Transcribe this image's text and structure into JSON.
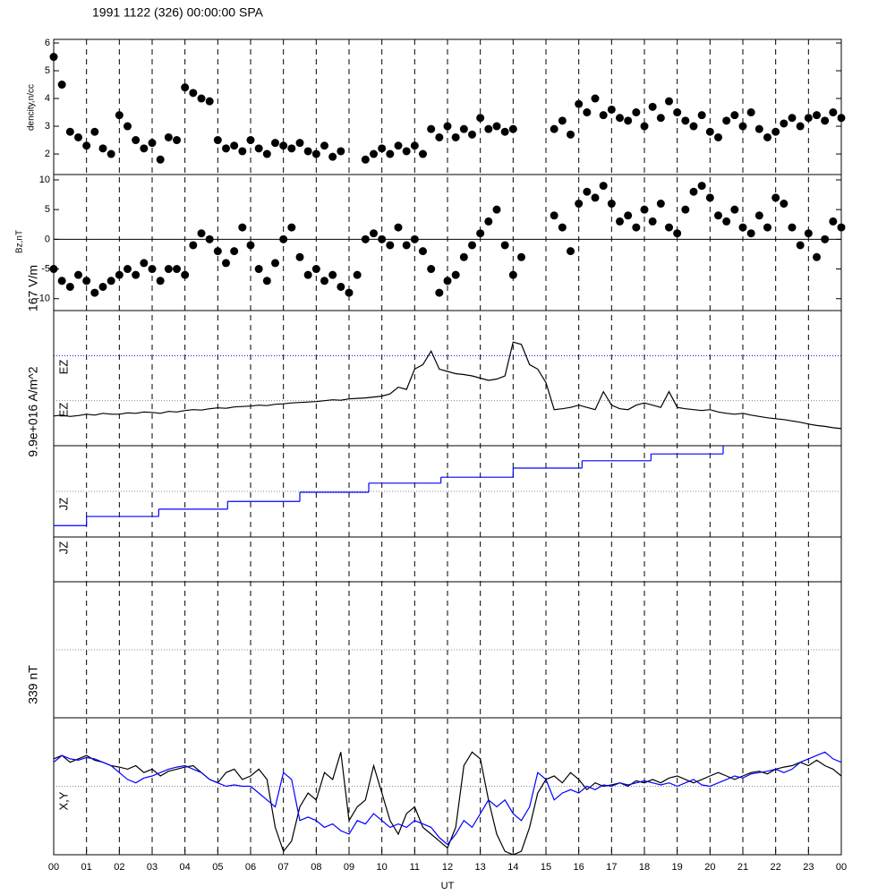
{
  "chart_data": [
    {
      "type": "scatter",
      "title": "1991 1122 (326) 00:00:00 SPA",
      "labels": [
        "dencity,n/cc"
      ],
      "color": "#000000",
      "xlim": [
        0,
        24
      ],
      "ylim": [
        1.26,
        6.13
      ],
      "yticks": [
        2,
        3,
        4,
        5,
        6
      ],
      "x": [
        0,
        0.25,
        0.5,
        0.75,
        1,
        1.25,
        1.5,
        1.75,
        2,
        2.25,
        2.5,
        2.75,
        3,
        3.25,
        3.5,
        3.75,
        4,
        4.25,
        4.5,
        4.75,
        5,
        5.25,
        5.5,
        5.75,
        6,
        6.25,
        6.5,
        6.75,
        7,
        7.25,
        7.5,
        7.75,
        8,
        8.25,
        8.5,
        8.75,
        9,
        9.25,
        9.5,
        9.75,
        10,
        10.25,
        10.5,
        10.75,
        11,
        11.25,
        11.5,
        11.75,
        12,
        12.25,
        12.5,
        12.75,
        13,
        13.25,
        13.5,
        13.75,
        14,
        14.25,
        14.5,
        14.75,
        15,
        15.25,
        15.5,
        15.75,
        16,
        16.25,
        16.5,
        16.75,
        17,
        17.25,
        17.5,
        17.75,
        18,
        18.25,
        18.5,
        18.75,
        19,
        19.25,
        19.5,
        19.75,
        20,
        20.25,
        20.5,
        20.75,
        21,
        21.25,
        21.5,
        21.75,
        22,
        22.25,
        22.5,
        22.75,
        23,
        23.25,
        23.5,
        23.75,
        24
      ],
      "values": [
        5.5,
        4.5,
        2.8,
        2.6,
        2.3,
        2.8,
        2.2,
        2.0,
        3.4,
        3.0,
        2.5,
        2.2,
        2.4,
        1.8,
        2.6,
        2.5,
        4.4,
        4.2,
        4.0,
        3.9,
        2.5,
        2.2,
        2.3,
        2.1,
        2.5,
        2.2,
        2.0,
        2.4,
        2.3,
        2.2,
        2.4,
        2.1,
        2.0,
        2.3,
        1.9,
        2.1,
        null,
        null,
        1.8,
        2.0,
        2.2,
        2.0,
        2.3,
        2.1,
        2.3,
        2.0,
        2.9,
        2.6,
        3.0,
        2.6,
        2.9,
        2.7,
        3.3,
        2.9,
        3.0,
        2.8,
        2.9,
        null,
        null,
        null,
        null,
        2.9,
        3.2,
        2.7,
        3.8,
        3.5,
        4.0,
        3.4,
        3.6,
        3.3,
        3.2,
        3.5,
        3.0,
        3.7,
        3.3,
        3.9,
        3.5,
        3.2,
        3.0,
        3.4,
        2.8,
        2.6,
        3.2,
        3.4,
        3.0,
        3.5,
        2.9,
        2.6,
        2.8,
        3.1,
        3.3,
        3.0,
        3.3,
        3.4,
        3.2,
        3.5,
        3.3
      ]
    },
    {
      "type": "scatter",
      "labels": [
        "Bz,nT"
      ],
      "color": "#000000",
      "xlim": [
        0,
        24
      ],
      "ylim": [
        -12.0,
        10.9
      ],
      "yticks": [
        -10,
        -5,
        0,
        5,
        10
      ],
      "hlines": [
        0
      ],
      "hline_colors": [
        "#000000"
      ],
      "x": [
        0,
        0.25,
        0.5,
        0.75,
        1,
        1.25,
        1.5,
        1.75,
        2,
        2.25,
        2.5,
        2.75,
        3,
        3.25,
        3.5,
        3.75,
        4,
        4.25,
        4.5,
        4.75,
        5,
        5.25,
        5.5,
        5.75,
        6,
        6.25,
        6.5,
        6.75,
        7,
        7.25,
        7.5,
        7.75,
        8,
        8.25,
        8.5,
        8.75,
        9,
        9.25,
        9.5,
        9.75,
        10,
        10.25,
        10.5,
        10.75,
        11,
        11.25,
        11.5,
        11.75,
        12,
        12.25,
        12.5,
        12.75,
        13,
        13.25,
        13.5,
        13.75,
        14,
        14.25,
        14.5,
        14.75,
        15,
        15.25,
        15.5,
        15.75,
        16,
        16.25,
        16.5,
        16.75,
        17,
        17.25,
        17.5,
        17.75,
        18,
        18.25,
        18.5,
        18.75,
        19,
        19.25,
        19.5,
        19.75,
        20,
        20.25,
        20.5,
        20.75,
        21,
        21.25,
        21.5,
        21.75,
        22,
        22.25,
        22.5,
        22.75,
        23,
        23.25,
        23.5,
        23.75,
        24
      ],
      "values": [
        -5,
        -7,
        -8,
        -6,
        -7,
        -9,
        -8,
        -7,
        -6,
        -5,
        -6,
        -4,
        -5,
        -7,
        -5,
        -5,
        -6,
        -1,
        1,
        0,
        -2,
        -4,
        -2,
        2,
        -1,
        -5,
        -7,
        -4,
        0,
        2,
        -3,
        -6,
        -5,
        -7,
        -6,
        -8,
        -9,
        -6,
        0,
        1,
        0,
        -1,
        2,
        -1,
        0,
        -2,
        -5,
        -9,
        -7,
        -6,
        -3,
        -1,
        1,
        3,
        5,
        -1,
        -6,
        -3,
        null,
        null,
        null,
        4,
        2,
        -2,
        6,
        8,
        7,
        9,
        6,
        3,
        4,
        2,
        5,
        3,
        6,
        2,
        1,
        5,
        8,
        9,
        7,
        4,
        3,
        5,
        2,
        1,
        4,
        2,
        7,
        6,
        2,
        -1,
        1,
        -3,
        0,
        3,
        2
      ]
    },
    {
      "type": "line",
      "labels": [
        "167 V/m",
        "EZ",
        "EZ"
      ],
      "color": "#000000",
      "xlim": [
        0,
        24
      ],
      "ylim": [
        0,
        3
      ],
      "hlines": [
        2,
        1
      ],
      "hline_colors": [
        "#0000ff",
        "#888888"
      ],
      "x": [
        0,
        0.25,
        0.5,
        0.75,
        1,
        1.25,
        1.5,
        1.75,
        2,
        2.25,
        2.5,
        2.75,
        3,
        3.25,
        3.5,
        3.75,
        4,
        4.25,
        4.5,
        4.75,
        5,
        5.25,
        5.5,
        5.75,
        6,
        6.25,
        6.5,
        6.75,
        7,
        7.25,
        7.5,
        7.75,
        8,
        8.25,
        8.5,
        8.75,
        9,
        9.25,
        9.5,
        9.75,
        10,
        10.25,
        10.5,
        10.75,
        11,
        11.25,
        11.5,
        11.75,
        12,
        12.25,
        12.5,
        12.75,
        13,
        13.25,
        13.5,
        13.75,
        14,
        14.25,
        14.5,
        14.75,
        15,
        15.25,
        15.5,
        15.75,
        16,
        16.25,
        16.5,
        16.75,
        17,
        17.25,
        17.5,
        17.75,
        18,
        18.25,
        18.5,
        18.75,
        19,
        19.25,
        19.5,
        19.75,
        20,
        20.25,
        20.5,
        20.75,
        21,
        21.25,
        21.5,
        21.75,
        22,
        22.25,
        22.5,
        22.75,
        23,
        23.25,
        23.5,
        23.75,
        24
      ],
      "values": [
        0.66,
        0.68,
        0.65,
        0.67,
        0.7,
        0.68,
        0.72,
        0.7,
        0.7,
        0.73,
        0.72,
        0.75,
        0.74,
        0.72,
        0.76,
        0.75,
        0.78,
        0.8,
        0.79,
        0.82,
        0.84,
        0.83,
        0.86,
        0.87,
        0.88,
        0.9,
        0.89,
        0.92,
        0.93,
        0.95,
        0.96,
        0.97,
        0.98,
        1.0,
        1.02,
        1.01,
        1.04,
        1.05,
        1.06,
        1.08,
        1.1,
        1.15,
        1.3,
        1.25,
        1.7,
        1.8,
        2.1,
        1.7,
        1.65,
        1.6,
        1.58,
        1.55,
        1.5,
        1.45,
        1.48,
        1.55,
        2.3,
        2.25,
        1.8,
        1.7,
        1.4,
        0.8,
        0.82,
        0.85,
        0.9,
        0.85,
        0.8,
        1.2,
        0.9,
        0.82,
        0.8,
        0.9,
        0.95,
        0.9,
        0.85,
        1.2,
        0.85,
        0.82,
        0.8,
        0.78,
        0.8,
        0.75,
        0.72,
        0.7,
        0.72,
        0.68,
        0.65,
        0.62,
        0.6,
        0.58,
        0.55,
        0.52,
        0.48,
        0.45,
        0.43,
        0.4,
        0.38
      ]
    },
    {
      "type": "step",
      "labels": [
        "9.9e+016 A/m^2",
        "JZ",
        "JZ"
      ],
      "color": "#0000ff",
      "xlim": [
        0,
        24
      ],
      "ylim": [
        0,
        2
      ],
      "hlines": [
        1
      ],
      "hline_colors": [
        "#888888"
      ],
      "x": [
        0,
        1,
        3.2,
        5.3,
        7.5,
        9.6,
        11.8,
        14,
        16.1,
        18.2,
        20.4
      ],
      "values": [
        0.25,
        0.45,
        0.61,
        0.78,
        0.98,
        1.18,
        1.31,
        1.51,
        1.67,
        1.82,
        2
      ]
    },
    {
      "type": "line",
      "xlim": [
        0,
        24
      ],
      "ylim": [
        0,
        2
      ]
    },
    {
      "type": "line",
      "labels": [
        "339 nT"
      ],
      "xlim": [
        0,
        24
      ],
      "ylim": [
        0,
        2
      ],
      "hlines": [
        1
      ],
      "hline_colors": [
        "#888888"
      ]
    },
    {
      "type": "multiline",
      "labels": [
        "X,Y"
      ],
      "xlabel": "UT",
      "xlim": [
        0,
        24
      ],
      "ylim": [
        -1,
        1
      ],
      "hlines": [
        0
      ],
      "hline_colors": [
        "#888888"
      ],
      "xticks": [
        {
          "value": 0,
          "label": "00"
        },
        {
          "value": 1,
          "label": "01"
        },
        {
          "value": 2,
          "label": "02"
        },
        {
          "value": 3,
          "label": "03"
        },
        {
          "value": 4,
          "label": "04"
        },
        {
          "value": 5,
          "label": "05"
        },
        {
          "value": 6,
          "label": "06"
        },
        {
          "value": 7,
          "label": "07"
        },
        {
          "value": 8,
          "label": "08"
        },
        {
          "value": 9,
          "label": "09"
        },
        {
          "value": 10,
          "label": "10"
        },
        {
          "value": 11,
          "label": "11"
        },
        {
          "value": 12,
          "label": "12"
        },
        {
          "value": 13,
          "label": "13"
        },
        {
          "value": 14,
          "label": "14"
        },
        {
          "value": 15,
          "label": "15"
        },
        {
          "value": 16,
          "label": "16"
        },
        {
          "value": 17,
          "label": "17"
        },
        {
          "value": 18,
          "label": "18"
        },
        {
          "value": 19,
          "label": "19"
        },
        {
          "value": 20,
          "label": "20"
        },
        {
          "value": 21,
          "label": "21"
        },
        {
          "value": 22,
          "label": "22"
        },
        {
          "value": 23,
          "label": "23"
        },
        {
          "value": 24,
          "label": "00"
        }
      ],
      "x": [
        0,
        0.25,
        0.5,
        0.75,
        1,
        1.25,
        1.5,
        1.75,
        2,
        2.25,
        2.5,
        2.75,
        3,
        3.25,
        3.5,
        3.75,
        4,
        4.25,
        4.5,
        4.75,
        5,
        5.25,
        5.5,
        5.75,
        6,
        6.25,
        6.5,
        6.75,
        7,
        7.25,
        7.5,
        7.75,
        8,
        8.25,
        8.5,
        8.75,
        9,
        9.25,
        9.5,
        9.75,
        10,
        10.25,
        10.5,
        10.75,
        11,
        11.25,
        11.5,
        11.75,
        12,
        12.25,
        12.5,
        12.75,
        13,
        13.25,
        13.5,
        13.75,
        14,
        14.25,
        14.5,
        14.75,
        15,
        15.25,
        15.5,
        15.75,
        16,
        16.25,
        16.5,
        16.75,
        17,
        17.25,
        17.5,
        17.75,
        18,
        18.25,
        18.5,
        18.75,
        19,
        19.25,
        19.5,
        19.75,
        20,
        20.25,
        20.5,
        20.75,
        21,
        21.25,
        21.5,
        21.75,
        22,
        22.25,
        22.5,
        22.75,
        23,
        23.25,
        23.5,
        23.75,
        24
      ],
      "series": [
        {
          "color": "#000000",
          "values": [
            0.4,
            0.45,
            0.35,
            0.4,
            0.45,
            0.38,
            0.35,
            0.3,
            0.28,
            0.25,
            0.3,
            0.2,
            0.25,
            0.15,
            0.22,
            0.25,
            0.28,
            0.3,
            0.2,
            0.1,
            0.05,
            0.2,
            0.25,
            0.1,
            0.15,
            0.25,
            0.1,
            -0.6,
            -0.95,
            -0.8,
            -0.3,
            -0.1,
            -0.2,
            0.2,
            0.1,
            0.5,
            -0.5,
            -0.3,
            -0.2,
            0.3,
            -0.1,
            -0.5,
            -0.7,
            -0.4,
            -0.3,
            -0.6,
            -0.7,
            -0.8,
            -0.9,
            -0.6,
            0.3,
            0.5,
            0.4,
            -0.2,
            -0.7,
            -0.95,
            -1,
            -0.95,
            -0.6,
            -0.1,
            0.1,
            0.15,
            0.05,
            0.2,
            0.1,
            -0.05,
            0.05,
            0.0,
            0.02,
            0.05,
            0.0,
            0.08,
            0.05,
            0.1,
            0.05,
            0.12,
            0.15,
            0.1,
            0.05,
            0.1,
            0.15,
            0.2,
            0.15,
            0.1,
            0.15,
            0.2,
            0.22,
            0.18,
            0.25,
            0.28,
            0.3,
            0.35,
            0.3,
            0.38,
            0.3,
            0.25,
            0.15
          ]
        },
        {
          "color": "#0000ff",
          "values": [
            0.35,
            0.45,
            0.4,
            0.38,
            0.42,
            0.4,
            0.35,
            0.3,
            0.2,
            0.1,
            0.05,
            0.12,
            0.15,
            0.2,
            0.25,
            0.28,
            0.3,
            0.25,
            0.2,
            0.1,
            0.05,
            0.0,
            0.02,
            0.0,
            0.0,
            -0.1,
            -0.2,
            -0.3,
            0.2,
            0.1,
            -0.5,
            -0.45,
            -0.5,
            -0.6,
            -0.55,
            -0.65,
            -0.7,
            -0.5,
            -0.55,
            -0.4,
            -0.5,
            -0.6,
            -0.55,
            -0.6,
            -0.5,
            -0.55,
            -0.6,
            -0.75,
            -0.85,
            -0.7,
            -0.5,
            -0.6,
            -0.4,
            -0.2,
            -0.3,
            -0.2,
            -0.4,
            -0.5,
            -0.3,
            0.2,
            0.1,
            -0.2,
            -0.1,
            -0.05,
            -0.1,
            0.0,
            -0.05,
            0.02,
            0.0,
            0.05,
            0.02,
            0.05,
            0.08,
            0.05,
            0.02,
            0.05,
            0.0,
            0.05,
            0.1,
            0.02,
            0.0,
            0.05,
            0.1,
            0.15,
            0.12,
            0.18,
            0.2,
            0.22,
            0.25,
            0.2,
            0.25,
            0.35,
            0.4,
            0.45,
            0.5,
            0.4,
            0.35
          ]
        }
      ]
    }
  ]
}
